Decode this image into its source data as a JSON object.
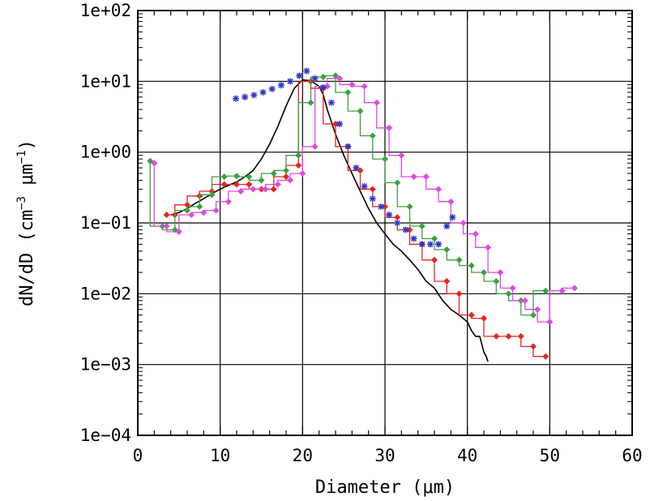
{
  "chart_data": {
    "type": "line",
    "xlabel": "Diameter (μm)",
    "ylabel": {
      "prefix": "dN/dD (cm",
      "exp1": "−3",
      "mid": " μm",
      "exp2": "−1",
      "suffix": ")"
    },
    "xlim": [
      0,
      60
    ],
    "ylim": [
      0.0001,
      100
    ],
    "yscale": "log",
    "grid": true,
    "legend": "none",
    "x_ticks": [
      "0",
      "10",
      "20",
      "30",
      "40",
      "50",
      "60"
    ],
    "y_ticks": [
      "1e−04",
      "1e−03",
      "1e−02",
      "1e−01",
      "1e+00",
      "1e+01",
      "1e+02"
    ],
    "series": [
      {
        "color": "#000000",
        "style": "line",
        "x": [
          4.0,
          5.0,
          6.0,
          7.0,
          8.0,
          9.0,
          10.0,
          11.0,
          12.0,
          13.0,
          14.0,
          15.0,
          16.0,
          17.0,
          18.0,
          19.0,
          20.0,
          21.0,
          22.0,
          22.5,
          23.0,
          24.0,
          25.0,
          26.0,
          27.0,
          28.0,
          29.0,
          30.0,
          31.0,
          32.0,
          33.0,
          34.0,
          35.0,
          36.0,
          37.0,
          38.0,
          39.0,
          40.0,
          40.5,
          41.0,
          41.5,
          42.0,
          42.3,
          42.5
        ],
        "y": [
          0.13,
          0.14,
          0.16,
          0.19,
          0.22,
          0.26,
          0.3,
          0.34,
          0.38,
          0.45,
          0.55,
          0.8,
          1.3,
          2.3,
          4.5,
          8.0,
          10.5,
          10.2,
          8.5,
          6.5,
          4.0,
          1.8,
          0.9,
          0.5,
          0.28,
          0.16,
          0.1,
          0.07,
          0.05,
          0.04,
          0.03,
          0.022,
          0.015,
          0.012,
          0.008,
          0.006,
          0.005,
          0.004,
          0.003,
          0.0025,
          0.0025,
          0.0015,
          0.0013,
          0.0011
        ]
      },
      {
        "color": "#e8241e",
        "style": "step",
        "x": [
          3.5,
          4.5,
          6.0,
          7.5,
          9.0,
          10.5,
          12.0,
          13.5,
          15.0,
          16.5,
          18.0,
          19.5,
          21.0,
          22.5,
          24.0,
          25.5,
          27.0,
          28.5,
          30.0,
          31.5,
          33.0,
          34.5,
          36.0,
          37.5,
          39.0,
          40.5,
          42.0,
          43.5,
          45.0,
          46.5,
          48.0,
          49.5
        ],
        "y": [
          0.13,
          0.13,
          0.18,
          0.24,
          0.28,
          0.35,
          0.35,
          0.35,
          0.3,
          0.3,
          0.45,
          0.65,
          10.0,
          8.0,
          2.5,
          1.2,
          0.55,
          0.3,
          0.17,
          0.12,
          0.08,
          0.05,
          0.03,
          0.015,
          0.01,
          0.005,
          0.0045,
          0.0025,
          0.0025,
          0.0025,
          0.0018,
          0.0013
        ]
      },
      {
        "color": "#3ca13c",
        "style": "step",
        "x": [
          1.5,
          3.0,
          4.5,
          6.0,
          7.5,
          9.0,
          10.5,
          12.0,
          13.5,
          15.0,
          16.5,
          18.0,
          19.5,
          21.0,
          22.5,
          24.0,
          25.5,
          27.0,
          28.5,
          30.0,
          31.5,
          33.0,
          34.5,
          36.0,
          37.5,
          39.0,
          40.5,
          42.0,
          43.5,
          45.0,
          46.5,
          48.0,
          49.5
        ],
        "y": [
          0.75,
          0.09,
          0.08,
          0.15,
          0.17,
          0.25,
          0.45,
          0.46,
          0.45,
          0.4,
          0.5,
          0.55,
          0.9,
          5.0,
          11.5,
          12.0,
          7.0,
          3.8,
          1.7,
          0.8,
          0.37,
          0.17,
          0.09,
          0.06,
          0.042,
          0.03,
          0.025,
          0.02,
          0.015,
          0.01,
          0.008,
          0.005,
          0.011
        ]
      },
      {
        "color": "#e048e0",
        "style": "step",
        "x": [
          2.0,
          3.5,
          5.0,
          6.5,
          8.0,
          9.5,
          11.0,
          12.5,
          14.0,
          15.5,
          17.0,
          18.5,
          20.0,
          21.5,
          23.0,
          24.5,
          26.0,
          27.5,
          29.0,
          30.5,
          32.0,
          33.5,
          35.0,
          36.5,
          38.0,
          39.5,
          41.0,
          42.5,
          44.0,
          45.5,
          47.0,
          48.5,
          50.0,
          51.5,
          53.0
        ],
        "y": [
          0.7,
          0.09,
          0.075,
          0.13,
          0.14,
          0.15,
          0.2,
          0.28,
          0.3,
          0.3,
          0.35,
          0.4,
          0.5,
          1.2,
          8.5,
          11.0,
          9.0,
          8.5,
          5.0,
          2.2,
          0.9,
          0.45,
          0.45,
          0.3,
          0.2,
          0.1,
          0.07,
          0.045,
          0.02,
          0.012,
          0.008,
          0.006,
          0.004,
          0.011,
          0.012
        ]
      },
      {
        "color": "#2c36c8",
        "style": "marker",
        "x": [
          11.9,
          13.0,
          14.1,
          15.2,
          16.3,
          17.4,
          18.5,
          19.6,
          20.5,
          21.5,
          22.5,
          23.5,
          24.5,
          25.5,
          26.5,
          27.5,
          28.5,
          29.5,
          30.5,
          31.5,
          32.5,
          33.5,
          34.5,
          35.5,
          36.5,
          37.5,
          38.2
        ],
        "y": [
          5.7,
          6.0,
          6.4,
          7.0,
          7.8,
          8.8,
          10.0,
          12.0,
          14.0,
          11.0,
          8.2,
          5.0,
          2.5,
          1.2,
          0.6,
          0.33,
          0.22,
          0.17,
          0.13,
          0.1,
          0.08,
          0.06,
          0.05,
          0.05,
          0.05,
          0.09,
          0.12
        ]
      }
    ]
  }
}
